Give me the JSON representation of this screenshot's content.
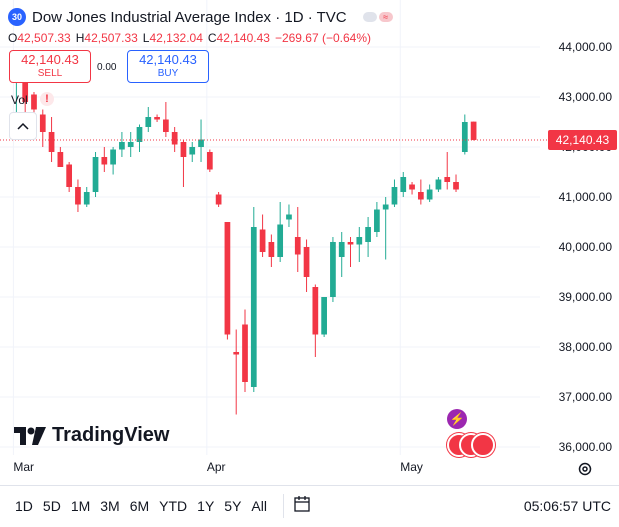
{
  "header": {
    "badge": "30",
    "title": "Dow Jones Industrial Average Index · 1D · TVC",
    "ohlc": {
      "o_label": "O",
      "o": "42,507.33",
      "h_label": "H",
      "h": "42,507.33",
      "l_label": "L",
      "l": "42,132.04",
      "c_label": "C",
      "c": "42,140.43",
      "change": "−269.67 (−0.64%)"
    }
  },
  "trade": {
    "sell_price": "42,140.43",
    "sell_label": "SELL",
    "spread": "0.00",
    "buy_price": "42,140.43",
    "buy_label": "BUY"
  },
  "volume_label": "Vol",
  "volume_flag": "!",
  "last_price_label": "42,140.43",
  "logo_text": "TradingView",
  "event_flash": "⚡",
  "bottom": {
    "ranges": [
      "1D",
      "5D",
      "1M",
      "3M",
      "6M",
      "YTD",
      "1Y",
      "5Y",
      "All"
    ],
    "clock": "05:06:57 UTC"
  },
  "colors": {
    "up": "#22ab94",
    "down": "#f23645",
    "accent": "#2962ff"
  },
  "icons": {
    "settings": "settings-icon",
    "calendar": "calendar-goto-icon",
    "collapse": "chevron-up-icon"
  },
  "chart_data": {
    "type": "candlestick",
    "title": "Dow Jones Industrial Average Index · 1D · TVC",
    "y_ticks": [
      "44,000.00",
      "43,000.00",
      "42,000.00",
      "41,000.00",
      "40,000.00",
      "39,000.00",
      "38,000.00",
      "37,000.00",
      "36,000.00"
    ],
    "y_tick_values": [
      44000,
      43000,
      42000,
      41000,
      40000,
      39000,
      38000,
      37000,
      36000
    ],
    "ylim": [
      35750,
      44300
    ],
    "x_ticks": [
      {
        "label": "Mar",
        "index": 0
      },
      {
        "label": "Apr",
        "index": 22
      },
      {
        "label": "May",
        "index": 44
      }
    ],
    "last_price": 42140.43,
    "candles": [
      {
        "o": 43500,
        "h": 43900,
        "l": 42500,
        "c": 43700
      },
      {
        "o": 43600,
        "h": 43800,
        "l": 42600,
        "c": 42900
      },
      {
        "o": 43050,
        "h": 43100,
        "l": 42650,
        "c": 42750
      },
      {
        "o": 42650,
        "h": 42750,
        "l": 42000,
        "c": 42300
      },
      {
        "o": 42300,
        "h": 42600,
        "l": 41700,
        "c": 41900
      },
      {
        "o": 41900,
        "h": 42000,
        "l": 41600,
        "c": 41600
      },
      {
        "o": 41650,
        "h": 41700,
        "l": 41100,
        "c": 41200
      },
      {
        "o": 41200,
        "h": 41350,
        "l": 40700,
        "c": 40850
      },
      {
        "o": 40850,
        "h": 41200,
        "l": 40800,
        "c": 41100
      },
      {
        "o": 41100,
        "h": 41900,
        "l": 41000,
        "c": 41800
      },
      {
        "o": 41800,
        "h": 42000,
        "l": 41500,
        "c": 41650
      },
      {
        "o": 41650,
        "h": 42000,
        "l": 41450,
        "c": 41950
      },
      {
        "o": 41950,
        "h": 42300,
        "l": 41800,
        "c": 42100
      },
      {
        "o": 42000,
        "h": 42300,
        "l": 41800,
        "c": 42100
      },
      {
        "o": 42100,
        "h": 42450,
        "l": 41900,
        "c": 42400
      },
      {
        "o": 42400,
        "h": 42800,
        "l": 42300,
        "c": 42600
      },
      {
        "o": 42600,
        "h": 42650,
        "l": 42500,
        "c": 42550
      },
      {
        "o": 42550,
        "h": 42900,
        "l": 42200,
        "c": 42300
      },
      {
        "o": 42300,
        "h": 42400,
        "l": 41900,
        "c": 42050
      },
      {
        "o": 42100,
        "h": 42150,
        "l": 41200,
        "c": 41800
      },
      {
        "o": 41850,
        "h": 42100,
        "l": 41700,
        "c": 42000
      },
      {
        "o": 42000,
        "h": 42550,
        "l": 41700,
        "c": 42150
      },
      {
        "o": 41900,
        "h": 41950,
        "l": 41500,
        "c": 41550
      },
      {
        "o": 41050,
        "h": 41100,
        "l": 40800,
        "c": 40850
      },
      {
        "o": 40500,
        "h": 40500,
        "l": 38150,
        "c": 38250
      },
      {
        "o": 37900,
        "h": 38350,
        "l": 36650,
        "c": 37850
      },
      {
        "o": 38450,
        "h": 38750,
        "l": 37100,
        "c": 37300
      },
      {
        "o": 37200,
        "h": 40800,
        "l": 37100,
        "c": 40400
      },
      {
        "o": 40350,
        "h": 40650,
        "l": 39800,
        "c": 39900
      },
      {
        "o": 40100,
        "h": 40250,
        "l": 39600,
        "c": 39800
      },
      {
        "o": 39800,
        "h": 40900,
        "l": 39700,
        "c": 40450
      },
      {
        "o": 40550,
        "h": 40850,
        "l": 40400,
        "c": 40650
      },
      {
        "o": 40200,
        "h": 40800,
        "l": 39500,
        "c": 39850
      },
      {
        "o": 40000,
        "h": 40150,
        "l": 39100,
        "c": 39400
      },
      {
        "o": 39200,
        "h": 39250,
        "l": 37800,
        "c": 38250
      },
      {
        "o": 38250,
        "h": 39000,
        "l": 38200,
        "c": 39000
      },
      {
        "o": 39000,
        "h": 40200,
        "l": 38900,
        "c": 40100
      },
      {
        "o": 39800,
        "h": 40300,
        "l": 39400,
        "c": 40100
      },
      {
        "o": 40100,
        "h": 40200,
        "l": 39600,
        "c": 40050
      },
      {
        "o": 40050,
        "h": 40400,
        "l": 39700,
        "c": 40200
      },
      {
        "o": 40100,
        "h": 40600,
        "l": 39800,
        "c": 40400
      },
      {
        "o": 40300,
        "h": 40900,
        "l": 40200,
        "c": 40750
      },
      {
        "o": 40750,
        "h": 41000,
        "l": 39750,
        "c": 40850
      },
      {
        "o": 40850,
        "h": 41350,
        "l": 40800,
        "c": 41200
      },
      {
        "o": 41100,
        "h": 41500,
        "l": 41000,
        "c": 41400
      },
      {
        "o": 41250,
        "h": 41300,
        "l": 41050,
        "c": 41150
      },
      {
        "o": 41100,
        "h": 41350,
        "l": 40850,
        "c": 40950
      },
      {
        "o": 40950,
        "h": 41250,
        "l": 40900,
        "c": 41150
      },
      {
        "o": 41150,
        "h": 41400,
        "l": 41100,
        "c": 41350
      },
      {
        "o": 41400,
        "h": 41900,
        "l": 41150,
        "c": 41300
      },
      {
        "o": 41300,
        "h": 41450,
        "l": 41100,
        "c": 41150
      },
      {
        "o": 41900,
        "h": 42650,
        "l": 41850,
        "c": 42500
      },
      {
        "o": 42507.33,
        "h": 42507.33,
        "l": 42132.04,
        "c": 42140.43
      }
    ]
  }
}
